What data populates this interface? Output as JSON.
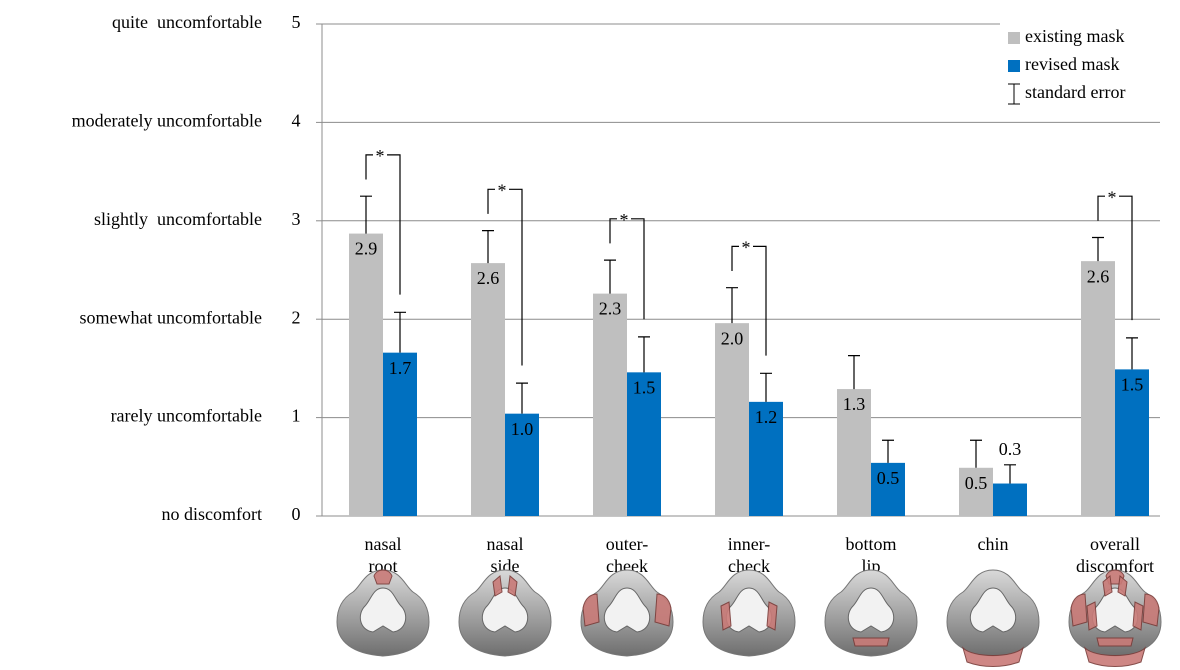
{
  "chart_data": {
    "type": "bar",
    "categories": [
      [
        "nasal",
        "root"
      ],
      [
        "nasal",
        "side"
      ],
      [
        "outer-",
        "cheek"
      ],
      [
        "inner-",
        "check"
      ],
      [
        "bottom",
        "lip"
      ],
      [
        "chin"
      ],
      [
        "overall",
        "discomfort"
      ]
    ],
    "series": [
      {
        "name": "existing mask",
        "color": "#bfbfbf",
        "values": [
          2.87,
          2.57,
          2.26,
          1.96,
          1.29,
          0.49,
          2.59
        ],
        "value_labels": [
          "2.9",
          "2.6",
          "2.3",
          "2.0",
          "1.3",
          "0.5",
          "2.6"
        ],
        "errors": [
          0.38,
          0.33,
          0.34,
          0.36,
          0.34,
          0.28,
          0.24
        ]
      },
      {
        "name": "revised mask",
        "color": "#0070c0",
        "values": [
          1.66,
          1.04,
          1.46,
          1.16,
          0.54,
          0.33,
          1.49
        ],
        "value_labels": [
          "1.7",
          "1.0",
          "1.5",
          "1.2",
          "0.5",
          "0.3",
          "1.5"
        ],
        "errors": [
          0.41,
          0.31,
          0.36,
          0.29,
          0.23,
          0.19,
          0.32
        ]
      }
    ],
    "error_label": "standard error",
    "significance": [
      "*",
      "*",
      "*",
      "*",
      null,
      null,
      "*"
    ],
    "ylim": [
      0,
      5
    ],
    "yticks": [
      0,
      1,
      2,
      3,
      4,
      5
    ],
    "ytick_descriptions": [
      "no discomfort",
      "rarely uncomfortable",
      "somewhat uncomfortable",
      "slightly  uncomfortable",
      "moderately uncomfortable",
      "quite  uncomfortable"
    ],
    "grid": true,
    "legend": "top-right"
  }
}
